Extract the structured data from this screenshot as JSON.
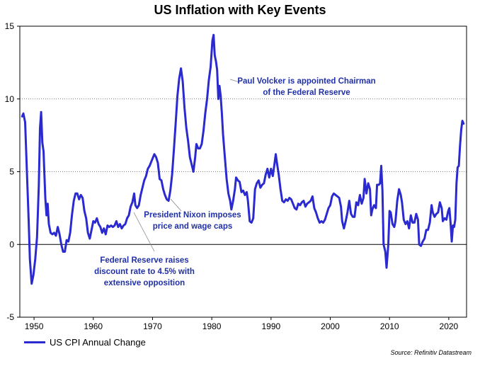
{
  "chart_data": {
    "type": "line",
    "title": "US Inflation with Key Events",
    "xlabel": "",
    "ylabel": "",
    "xlim": [
      1947.6,
      2023.0
    ],
    "ylim": [
      -5,
      15
    ],
    "x_ticks": [
      1950,
      1960,
      1970,
      1980,
      1990,
      2000,
      2010,
      2020
    ],
    "x_tick_labels": [
      "1950",
      "1960",
      "1970",
      "1980",
      "1990",
      "2000",
      "2010",
      "2020"
    ],
    "y_ticks": [
      -5,
      0,
      5,
      10,
      15
    ],
    "y_tick_labels": [
      "-5",
      "0",
      "5",
      "10",
      "15"
    ],
    "grid": "horizontal dotted at 5 and 10",
    "legend_position": "bottom-left",
    "series": [
      {
        "name": "US CPI Annual Change",
        "color": "#2a2ad0",
        "points": [
          [
            1948.0,
            8.8
          ],
          [
            1948.2,
            9.0
          ],
          [
            1948.5,
            8.4
          ],
          [
            1948.8,
            5.0
          ],
          [
            1949.1,
            1.5
          ],
          [
            1949.3,
            -1.0
          ],
          [
            1949.6,
            -2.7
          ],
          [
            1949.9,
            -2.1
          ],
          [
            1950.2,
            -1.0
          ],
          [
            1950.5,
            0.5
          ],
          [
            1950.8,
            4.0
          ],
          [
            1951.0,
            8.0
          ],
          [
            1951.2,
            9.1
          ],
          [
            1951.4,
            7.0
          ],
          [
            1951.6,
            6.4
          ],
          [
            1951.9,
            3.2
          ],
          [
            1952.1,
            2.0
          ],
          [
            1952.3,
            2.8
          ],
          [
            1952.5,
            1.4
          ],
          [
            1952.8,
            0.8
          ],
          [
            1953.1,
            0.7
          ],
          [
            1953.4,
            0.8
          ],
          [
            1953.7,
            0.6
          ],
          [
            1954.0,
            1.2
          ],
          [
            1954.3,
            0.7
          ],
          [
            1954.6,
            0.0
          ],
          [
            1954.9,
            -0.5
          ],
          [
            1955.2,
            -0.5
          ],
          [
            1955.5,
            0.3
          ],
          [
            1955.8,
            0.2
          ],
          [
            1956.1,
            0.8
          ],
          [
            1956.4,
            2.0
          ],
          [
            1956.7,
            3.0
          ],
          [
            1957.0,
            3.5
          ],
          [
            1957.3,
            3.5
          ],
          [
            1957.6,
            3.1
          ],
          [
            1957.9,
            3.4
          ],
          [
            1958.2,
            3.2
          ],
          [
            1958.5,
            2.3
          ],
          [
            1958.8,
            1.8
          ],
          [
            1959.1,
            0.8
          ],
          [
            1959.4,
            0.4
          ],
          [
            1959.7,
            1.0
          ],
          [
            1960.0,
            1.6
          ],
          [
            1960.3,
            1.5
          ],
          [
            1960.6,
            1.8
          ],
          [
            1960.9,
            1.4
          ],
          [
            1961.2,
            1.2
          ],
          [
            1961.5,
            0.8
          ],
          [
            1961.8,
            1.1
          ],
          [
            1962.1,
            0.7
          ],
          [
            1962.4,
            1.3
          ],
          [
            1962.7,
            1.2
          ],
          [
            1963.0,
            1.3
          ],
          [
            1963.3,
            1.2
          ],
          [
            1963.6,
            1.3
          ],
          [
            1963.9,
            1.6
          ],
          [
            1964.2,
            1.2
          ],
          [
            1964.5,
            1.4
          ],
          [
            1964.8,
            1.1
          ],
          [
            1965.1,
            1.3
          ],
          [
            1965.4,
            1.4
          ],
          [
            1965.7,
            1.8
          ],
          [
            1966.0,
            2.0
          ],
          [
            1966.3,
            2.6
          ],
          [
            1966.6,
            2.9
          ],
          [
            1966.9,
            3.5
          ],
          [
            1967.1,
            2.7
          ],
          [
            1967.4,
            2.5
          ],
          [
            1967.7,
            2.7
          ],
          [
            1968.0,
            3.4
          ],
          [
            1968.3,
            3.9
          ],
          [
            1968.6,
            4.4
          ],
          [
            1968.9,
            4.7
          ],
          [
            1969.2,
            5.2
          ],
          [
            1969.5,
            5.4
          ],
          [
            1969.8,
            5.7
          ],
          [
            1970.1,
            6.0
          ],
          [
            1970.3,
            6.2
          ],
          [
            1970.6,
            6.0
          ],
          [
            1970.9,
            5.6
          ],
          [
            1971.2,
            4.5
          ],
          [
            1971.5,
            4.4
          ],
          [
            1971.8,
            3.8
          ],
          [
            1972.1,
            3.4
          ],
          [
            1972.4,
            3.1
          ],
          [
            1972.7,
            3.0
          ],
          [
            1973.0,
            3.7
          ],
          [
            1973.3,
            4.8
          ],
          [
            1973.6,
            6.5
          ],
          [
            1973.9,
            8.3
          ],
          [
            1974.2,
            10.2
          ],
          [
            1974.5,
            11.4
          ],
          [
            1974.8,
            12.1
          ],
          [
            1975.1,
            11.2
          ],
          [
            1975.4,
            9.4
          ],
          [
            1975.7,
            8.0
          ],
          [
            1976.0,
            7.1
          ],
          [
            1976.3,
            6.0
          ],
          [
            1976.6,
            5.5
          ],
          [
            1976.9,
            5.0
          ],
          [
            1977.2,
            6.0
          ],
          [
            1977.4,
            6.9
          ],
          [
            1977.7,
            6.6
          ],
          [
            1978.0,
            6.6
          ],
          [
            1978.3,
            6.9
          ],
          [
            1978.6,
            7.8
          ],
          [
            1978.9,
            9.0
          ],
          [
            1979.2,
            10.0
          ],
          [
            1979.5,
            11.3
          ],
          [
            1979.8,
            12.2
          ],
          [
            1980.1,
            14.0
          ],
          [
            1980.3,
            14.4
          ],
          [
            1980.5,
            13.0
          ],
          [
            1980.7,
            12.6
          ],
          [
            1980.9,
            12.0
          ],
          [
            1981.1,
            10.0
          ],
          [
            1981.3,
            10.9
          ],
          [
            1981.5,
            10.2
          ],
          [
            1981.7,
            9.0
          ],
          [
            1981.9,
            7.6
          ],
          [
            1982.2,
            6.0
          ],
          [
            1982.5,
            4.5
          ],
          [
            1982.8,
            3.5
          ],
          [
            1983.1,
            3.0
          ],
          [
            1983.3,
            2.4
          ],
          [
            1983.6,
            3.0
          ],
          [
            1983.9,
            3.8
          ],
          [
            1984.1,
            4.6
          ],
          [
            1984.4,
            4.4
          ],
          [
            1984.7,
            4.3
          ],
          [
            1985.0,
            3.6
          ],
          [
            1985.3,
            3.7
          ],
          [
            1985.6,
            3.4
          ],
          [
            1985.9,
            3.6
          ],
          [
            1986.1,
            3.0
          ],
          [
            1986.4,
            1.6
          ],
          [
            1986.7,
            1.5
          ],
          [
            1987.0,
            1.8
          ],
          [
            1987.3,
            3.8
          ],
          [
            1987.6,
            4.2
          ],
          [
            1987.9,
            4.4
          ],
          [
            1988.2,
            3.9
          ],
          [
            1988.5,
            4.1
          ],
          [
            1988.8,
            4.2
          ],
          [
            1989.1,
            4.8
          ],
          [
            1989.4,
            5.2
          ],
          [
            1989.7,
            4.6
          ],
          [
            1990.0,
            5.2
          ],
          [
            1990.3,
            4.7
          ],
          [
            1990.6,
            5.6
          ],
          [
            1990.8,
            6.2
          ],
          [
            1991.0,
            5.6
          ],
          [
            1991.3,
            4.8
          ],
          [
            1991.6,
            3.8
          ],
          [
            1991.9,
            3.0
          ],
          [
            1992.2,
            2.9
          ],
          [
            1992.5,
            3.1
          ],
          [
            1992.8,
            3.0
          ],
          [
            1993.1,
            3.2
          ],
          [
            1993.4,
            3.1
          ],
          [
            1993.7,
            2.8
          ],
          [
            1994.0,
            2.5
          ],
          [
            1994.3,
            2.4
          ],
          [
            1994.6,
            2.8
          ],
          [
            1994.9,
            2.7
          ],
          [
            1995.2,
            2.9
          ],
          [
            1995.5,
            3.0
          ],
          [
            1995.8,
            2.6
          ],
          [
            1996.1,
            2.8
          ],
          [
            1996.4,
            2.9
          ],
          [
            1996.7,
            3.0
          ],
          [
            1997.0,
            3.3
          ],
          [
            1997.3,
            2.5
          ],
          [
            1997.6,
            2.2
          ],
          [
            1997.9,
            1.8
          ],
          [
            1998.2,
            1.5
          ],
          [
            1998.5,
            1.6
          ],
          [
            1998.8,
            1.5
          ],
          [
            1999.1,
            1.7
          ],
          [
            1999.4,
            2.1
          ],
          [
            1999.7,
            2.5
          ],
          [
            2000.0,
            2.7
          ],
          [
            2000.3,
            3.3
          ],
          [
            2000.6,
            3.5
          ],
          [
            2000.9,
            3.4
          ],
          [
            2001.2,
            3.3
          ],
          [
            2001.5,
            3.2
          ],
          [
            2001.8,
            2.6
          ],
          [
            2002.0,
            1.6
          ],
          [
            2002.3,
            1.1
          ],
          [
            2002.6,
            1.6
          ],
          [
            2002.9,
            2.2
          ],
          [
            2003.2,
            3.0
          ],
          [
            2003.5,
            2.1
          ],
          [
            2003.8,
            1.9
          ],
          [
            2004.1,
            1.9
          ],
          [
            2004.4,
            2.9
          ],
          [
            2004.7,
            2.7
          ],
          [
            2005.0,
            3.4
          ],
          [
            2005.3,
            2.8
          ],
          [
            2005.6,
            3.2
          ],
          [
            2005.8,
            4.5
          ],
          [
            2006.1,
            3.5
          ],
          [
            2006.4,
            4.2
          ],
          [
            2006.7,
            3.8
          ],
          [
            2006.9,
            2.0
          ],
          [
            2007.1,
            2.4
          ],
          [
            2007.4,
            2.7
          ],
          [
            2007.7,
            2.5
          ],
          [
            2007.9,
            4.1
          ],
          [
            2008.2,
            4.1
          ],
          [
            2008.4,
            4.2
          ],
          [
            2008.6,
            5.4
          ],
          [
            2008.8,
            3.7
          ],
          [
            2009.0,
            0.0
          ],
          [
            2009.3,
            -0.5
          ],
          [
            2009.5,
            -1.6
          ],
          [
            2009.8,
            0.0
          ],
          [
            2010.0,
            2.3
          ],
          [
            2010.2,
            2.2
          ],
          [
            2010.5,
            1.4
          ],
          [
            2010.8,
            1.2
          ],
          [
            2011.0,
            1.6
          ],
          [
            2011.3,
            3.0
          ],
          [
            2011.6,
            3.8
          ],
          [
            2011.9,
            3.4
          ],
          [
            2012.1,
            2.9
          ],
          [
            2012.4,
            1.7
          ],
          [
            2012.7,
            1.4
          ],
          [
            2013.0,
            1.6
          ],
          [
            2013.3,
            1.1
          ],
          [
            2013.6,
            2.0
          ],
          [
            2013.9,
            1.5
          ],
          [
            2014.2,
            1.5
          ],
          [
            2014.5,
            2.1
          ],
          [
            2014.8,
            1.7
          ],
          [
            2015.0,
            0.0
          ],
          [
            2015.3,
            -0.1
          ],
          [
            2015.6,
            0.2
          ],
          [
            2015.9,
            0.4
          ],
          [
            2016.2,
            1.0
          ],
          [
            2016.5,
            1.0
          ],
          [
            2016.8,
            1.5
          ],
          [
            2017.1,
            2.7
          ],
          [
            2017.3,
            2.2
          ],
          [
            2017.6,
            1.9
          ],
          [
            2017.9,
            2.1
          ],
          [
            2018.2,
            2.2
          ],
          [
            2018.5,
            2.9
          ],
          [
            2018.8,
            2.5
          ],
          [
            2019.0,
            1.6
          ],
          [
            2019.3,
            1.8
          ],
          [
            2019.6,
            1.7
          ],
          [
            2019.9,
            2.3
          ],
          [
            2020.1,
            2.5
          ],
          [
            2020.3,
            1.5
          ],
          [
            2020.5,
            0.2
          ],
          [
            2020.7,
            1.3
          ],
          [
            2020.9,
            1.2
          ],
          [
            2021.1,
            1.7
          ],
          [
            2021.3,
            4.2
          ],
          [
            2021.5,
            5.3
          ],
          [
            2021.7,
            5.4
          ],
          [
            2021.9,
            6.8
          ],
          [
            2022.1,
            7.9
          ],
          [
            2022.3,
            8.5
          ],
          [
            2022.5,
            8.3
          ]
        ]
      }
    ],
    "annotations": [
      {
        "lines": [
          "Paul Volcker is appointed Chairman",
          "of the Federal Reserve"
        ],
        "point": [
          1981.0,
          11.5
        ]
      },
      {
        "lines": [
          "President Nixon imposes",
          "price and wage caps"
        ],
        "point": [
          1971.5,
          3.5
        ]
      },
      {
        "lines": [
          "Federal Reserve raises",
          "discount rate to 4.5%  with",
          "extensive opposition"
        ],
        "point": [
          1967.0,
          2.5
        ]
      }
    ]
  },
  "legend": {
    "label": "US CPI Annual Change"
  },
  "source": "Source: Refinitiv Datastream"
}
